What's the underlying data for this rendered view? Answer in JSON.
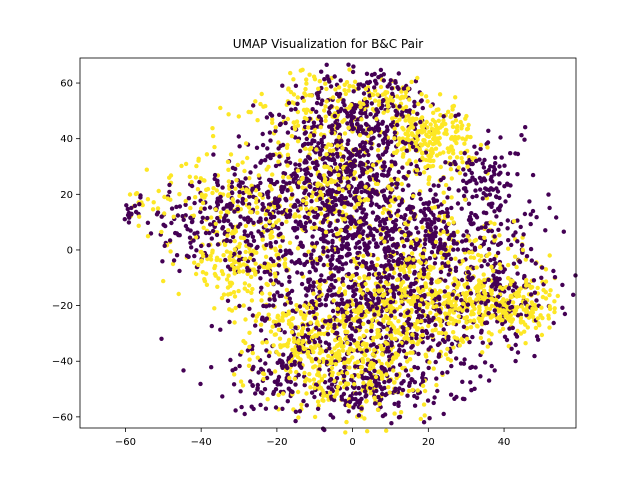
{
  "chart_data": {
    "type": "scatter",
    "title": "UMAP Visualization for B&C Pair",
    "xlabel": "",
    "ylabel": "",
    "xlim": [
      -72,
      59
    ],
    "ylim": [
      -64,
      69
    ],
    "xticks": [
      -60,
      -40,
      -20,
      0,
      20,
      40
    ],
    "yticks": [
      -60,
      -40,
      -20,
      0,
      20,
      40,
      60
    ],
    "xtick_labels": [
      "−60",
      "−40",
      "−20",
      "0",
      "20",
      "40"
    ],
    "ytick_labels": [
      "−60",
      "−40",
      "−20",
      "0",
      "20",
      "40",
      "60"
    ],
    "grid": false,
    "legend": "none",
    "colors": {
      "class_0": "#440154",
      "class_1": "#fde725",
      "axes": "#000000",
      "background": "#ffffff"
    },
    "approx_total_points": 5000,
    "series": [
      {
        "color": "#440154",
        "clusters": [
          {
            "center": [
              -60,
              15
            ],
            "spread": [
              3,
              3
            ],
            "count": 25
          },
          {
            "center": [
              -35,
              10
            ],
            "spread": [
              10,
              10
            ],
            "count": 180
          },
          {
            "center": [
              -15,
              20
            ],
            "spread": [
              10,
              12
            ],
            "count": 300
          },
          {
            "center": [
              0,
              28
            ],
            "spread": [
              8,
              15
            ],
            "count": 450
          },
          {
            "center": [
              5,
              50
            ],
            "spread": [
              10,
              8
            ],
            "count": 180
          },
          {
            "center": [
              15,
              5
            ],
            "spread": [
              10,
              10
            ],
            "count": 300
          },
          {
            "center": [
              10,
              -25
            ],
            "spread": [
              15,
              15
            ],
            "count": 500
          },
          {
            "center": [
              -5,
              -10
            ],
            "spread": [
              12,
              10
            ],
            "count": 250
          },
          {
            "center": [
              35,
              15
            ],
            "spread": [
              8,
              10
            ],
            "count": 120
          },
          {
            "center": [
              40,
              -15
            ],
            "spread": [
              8,
              10
            ],
            "count": 150
          },
          {
            "center": [
              -20,
              -45
            ],
            "spread": [
              8,
              8
            ],
            "count": 120
          },
          {
            "center": [
              5,
              -50
            ],
            "spread": [
              10,
              5
            ],
            "count": 150
          },
          {
            "center": [
              35,
              30
            ],
            "spread": [
              5,
              5
            ],
            "count": 50
          }
        ]
      },
      {
        "color": "#fde725",
        "clusters": [
          {
            "center": [
              -60,
              18
            ],
            "spread": [
              4,
              3
            ],
            "count": 25
          },
          {
            "center": [
              -30,
              -5
            ],
            "spread": [
              8,
              6
            ],
            "count": 180
          },
          {
            "center": [
              -40,
              20
            ],
            "spread": [
              8,
              8
            ],
            "count": 80
          },
          {
            "center": [
              -10,
              50
            ],
            "spread": [
              10,
              8
            ],
            "count": 150
          },
          {
            "center": [
              20,
              40
            ],
            "spread": [
              6,
              6
            ],
            "count": 260
          },
          {
            "center": [
              10,
              55
            ],
            "spread": [
              5,
              4
            ],
            "count": 60
          },
          {
            "center": [
              -20,
              15
            ],
            "spread": [
              8,
              8
            ],
            "count": 100
          },
          {
            "center": [
              5,
              15
            ],
            "spread": [
              10,
              10
            ],
            "count": 120
          },
          {
            "center": [
              15,
              -20
            ],
            "spread": [
              12,
              10
            ],
            "count": 420
          },
          {
            "center": [
              0,
              -40
            ],
            "spread": [
              10,
              10
            ],
            "count": 350
          },
          {
            "center": [
              -15,
              -30
            ],
            "spread": [
              8,
              8
            ],
            "count": 150
          },
          {
            "center": [
              35,
              -20
            ],
            "spread": [
              8,
              6
            ],
            "count": 220
          },
          {
            "center": [
              45,
              -20
            ],
            "spread": [
              5,
              6
            ],
            "count": 80
          },
          {
            "center": [
              30,
              0
            ],
            "spread": [
              10,
              8
            ],
            "count": 80
          },
          {
            "center": [
              -5,
              30
            ],
            "spread": [
              5,
              8
            ],
            "count": 80
          }
        ]
      }
    ]
  }
}
